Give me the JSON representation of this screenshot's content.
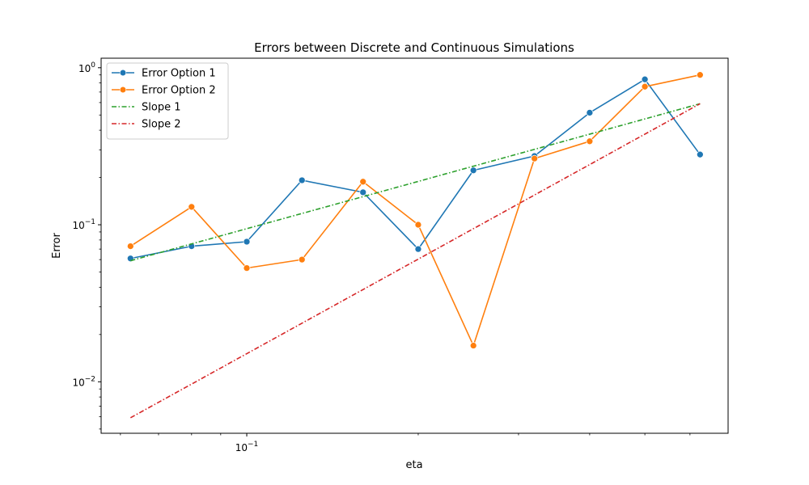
{
  "chart_data": {
    "type": "line",
    "title": "Errors between Discrete and Continuous Simulations",
    "xlabel": "eta",
    "ylabel": "Error",
    "xscale": "log",
    "yscale": "log",
    "xlim": [
      0.0555,
      0.7
    ],
    "ylim": [
      0.0047,
      1.15
    ],
    "x_ticks": [
      {
        "value": 0.1,
        "label": "10",
        "exp": "−1"
      }
    ],
    "y_ticks": [
      {
        "value": 0.01,
        "label": "10",
        "exp": "−2"
      },
      {
        "value": 0.1,
        "label": "10",
        "exp": "−1"
      },
      {
        "value": 1,
        "label": "10",
        "exp": "0"
      }
    ],
    "legend_position": "upper-left",
    "grid": false,
    "series": [
      {
        "name": "Error Option 1",
        "color": "#1f77b4",
        "style": "solid-marker",
        "x": [
          0.0625,
          0.08,
          0.1,
          0.125,
          0.16,
          0.2,
          0.25,
          0.32,
          0.4,
          0.5,
          0.625
        ],
        "y": [
          0.061,
          0.073,
          0.078,
          0.192,
          0.161,
          0.07,
          0.222,
          0.274,
          0.517,
          0.843,
          0.28
        ]
      },
      {
        "name": "Error Option 2",
        "color": "#ff7f0e",
        "style": "solid-marker",
        "x": [
          0.0625,
          0.08,
          0.1,
          0.125,
          0.16,
          0.2,
          0.25,
          0.32,
          0.4,
          0.5,
          0.625
        ],
        "y": [
          0.073,
          0.13,
          0.053,
          0.06,
          0.188,
          0.1,
          0.017,
          0.264,
          0.34,
          0.758,
          0.9
        ]
      },
      {
        "name": "Slope 1",
        "color": "#2ca02c",
        "style": "dashdot",
        "x": [
          0.0625,
          0.625
        ],
        "y": [
          0.059,
          0.59
        ]
      },
      {
        "name": "Slope 2",
        "color": "#d62728",
        "style": "dashdot",
        "x": [
          0.0625,
          0.625
        ],
        "y": [
          0.0059,
          0.59
        ]
      }
    ]
  }
}
